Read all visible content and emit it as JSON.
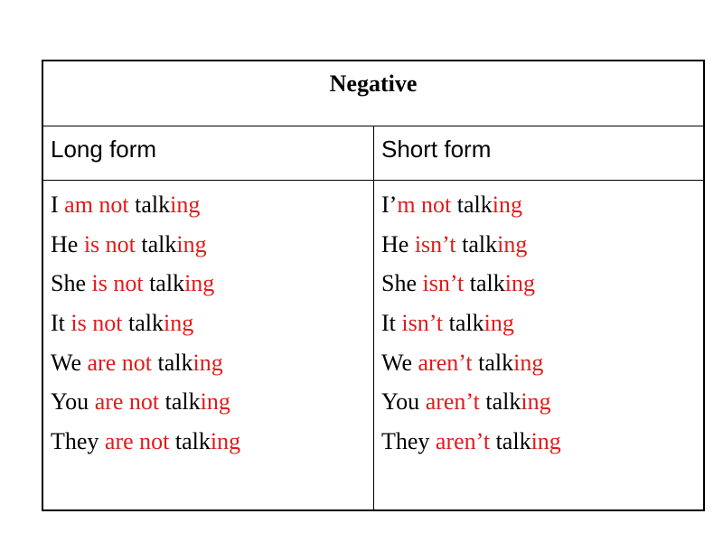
{
  "table": {
    "title": "Negative",
    "headers": [
      "Long form",
      "Short form"
    ],
    "accent_color": "#e01b1b",
    "long_form": [
      {
        "subject": "I",
        "verb": "am not",
        "stem": "talk",
        "suffix": "ing"
      },
      {
        "subject": "He",
        "verb": "is not",
        "stem": "talk",
        "suffix": "ing"
      },
      {
        "subject": "She",
        "verb": "is not",
        "stem": "talk",
        "suffix": "ing"
      },
      {
        "subject": "It",
        "verb": "is not",
        "stem": "talk",
        "suffix": "ing"
      },
      {
        "subject": "We",
        "verb": "are not",
        "stem": "talk",
        "suffix": "ing"
      },
      {
        "subject": "You",
        "verb": "are not",
        "stem": "talk",
        "suffix": "ing"
      },
      {
        "subject": "They",
        "verb": "are not",
        "stem": "talk",
        "suffix": "ing"
      }
    ],
    "short_form": [
      {
        "subject": "I’",
        "verb": "m not",
        "stem": "talk",
        "suffix": "ing"
      },
      {
        "subject": "He",
        "verb": "isn’t",
        "stem": "talk",
        "suffix": "ing"
      },
      {
        "subject": "She",
        "verb": "isn’t",
        "stem": "talk",
        "suffix": "ing"
      },
      {
        "subject": "It",
        "verb": "isn’t",
        "stem": "talk",
        "suffix": "ing"
      },
      {
        "subject": "We",
        "verb": "aren’t",
        "stem": "talk",
        "suffix": "ing"
      },
      {
        "subject": "You",
        "verb": "aren’t",
        "stem": "talk",
        "suffix": "ing"
      },
      {
        "subject": "They",
        "verb": "aren’t",
        "stem": "talk",
        "suffix": "ing"
      }
    ]
  }
}
